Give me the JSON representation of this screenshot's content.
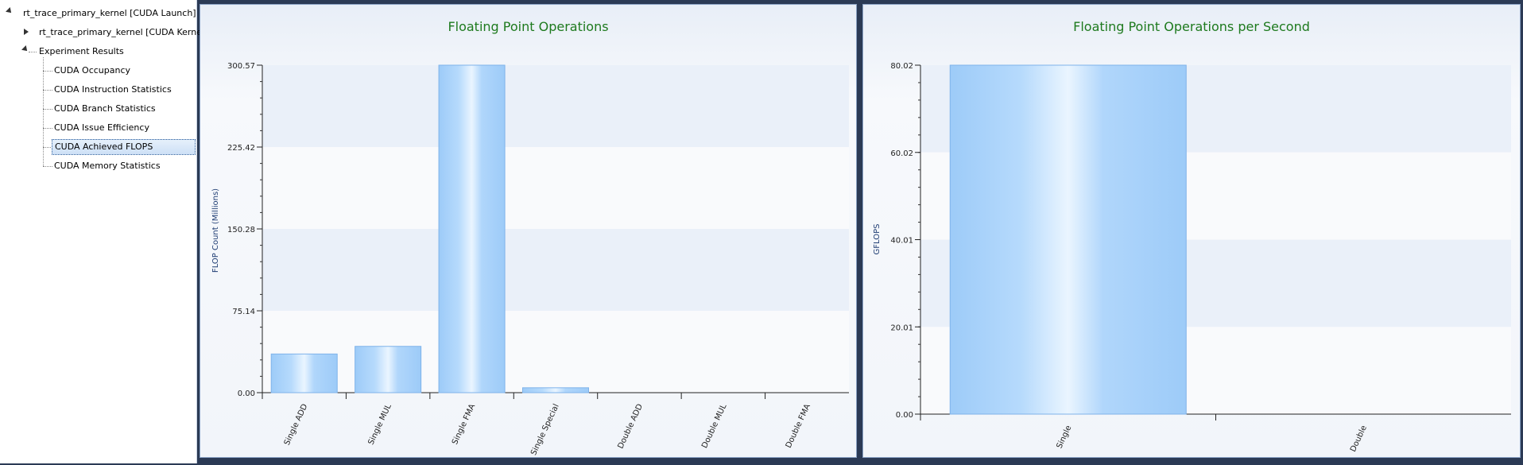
{
  "tree": {
    "root": "rt_trace_primary_kernel [CUDA Launch]",
    "kernel": "rt_trace_primary_kernel [CUDA Kernel]",
    "results": "Experiment Results",
    "items": [
      "CUDA Occupancy",
      "CUDA Instruction Statistics",
      "CUDA Branch Statistics",
      "CUDA Issue Efficiency",
      "CUDA Achieved FLOPS",
      "CUDA Memory Statistics"
    ],
    "selected_index": 4
  },
  "chart_data": [
    {
      "type": "bar",
      "title": "Floating Point Operations",
      "ylabel": "FLOP Count (Millions)",
      "xlabel": "",
      "categories": [
        "Single ADD",
        "Single MUL",
        "Single FMA",
        "Single Special",
        "Double ADD",
        "Double MUL",
        "Double FMA"
      ],
      "values": [
        35.5,
        42.5,
        300.57,
        4.5,
        0,
        0,
        0
      ],
      "ylim": [
        0,
        300.57
      ],
      "yticks": [
        "0.00",
        "75.14",
        "150.28",
        "225.42",
        "300.57"
      ],
      "grid": "banded"
    },
    {
      "type": "bar",
      "title": "Floating Point Operations per Second",
      "ylabel": "GFLOPS",
      "xlabel": "",
      "categories": [
        "Single",
        "Double"
      ],
      "values": [
        80.02,
        0
      ],
      "ylim": [
        0,
        80.02
      ],
      "yticks": [
        "0.00",
        "20.01",
        "40.01",
        "60.02",
        "80.02"
      ],
      "grid": "banded"
    }
  ],
  "colors": {
    "title": "#1e7a1e",
    "bar_light": "#eaf5ff",
    "bar_mid": "#9dcbf8",
    "bar_edge": "#7fb3ea"
  }
}
